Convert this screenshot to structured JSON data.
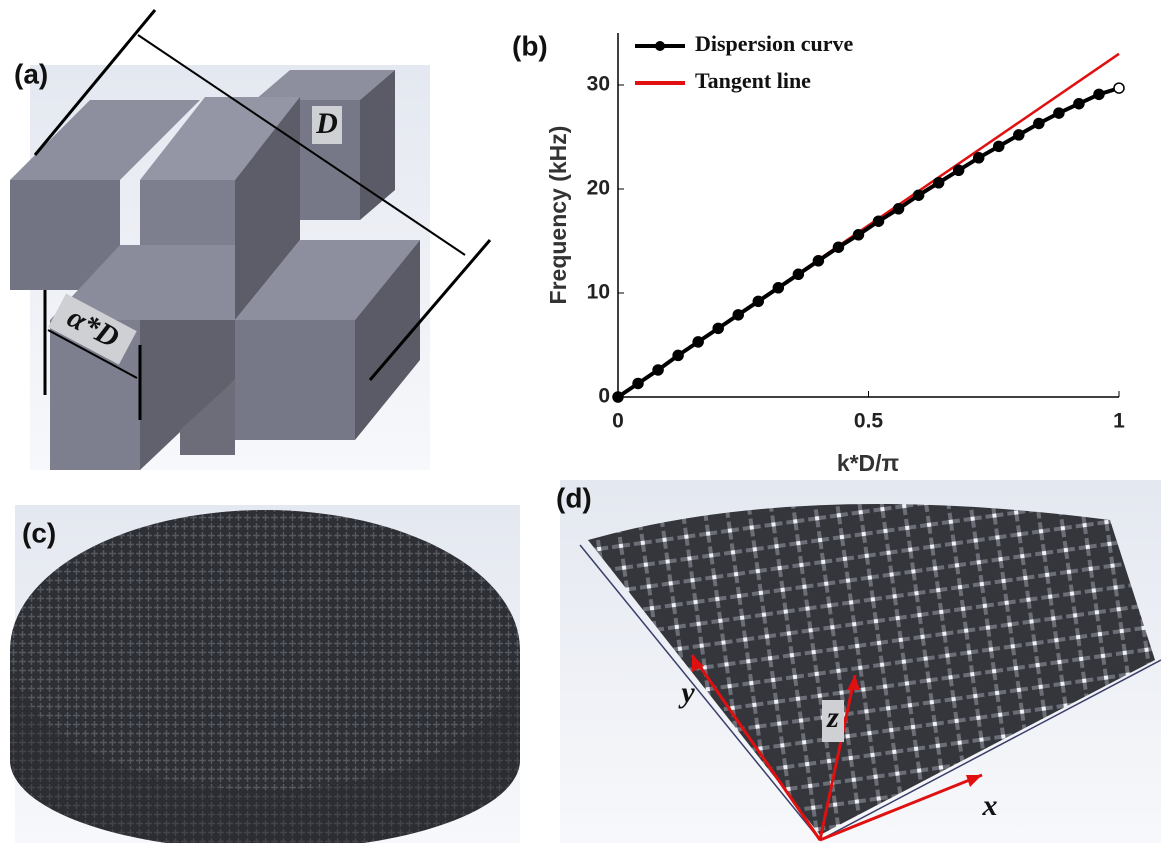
{
  "chart_data": {
    "type": "line",
    "panel_label": "(b)",
    "ylabel": "Frequency (kHz)",
    "xlabel": "k*D/π",
    "xlim": [
      0,
      1
    ],
    "ylim": [
      0,
      35
    ],
    "xticks": [
      0,
      0.5,
      1
    ],
    "yticks": [
      0,
      10,
      20,
      30
    ],
    "legend": "upper left",
    "series": [
      {
        "name": "Dispersion curve",
        "color": "#000000",
        "markers": true,
        "x": [
          0,
          0.04,
          0.08,
          0.12,
          0.16,
          0.2,
          0.24,
          0.28,
          0.32,
          0.36,
          0.4,
          0.44,
          0.48,
          0.52,
          0.56,
          0.6,
          0.64,
          0.68,
          0.72,
          0.76,
          0.8,
          0.84,
          0.88,
          0.92,
          0.96,
          1
        ],
        "values": [
          0,
          1.3,
          2.6,
          4.0,
          5.3,
          6.6,
          7.9,
          9.2,
          10.5,
          11.8,
          13.1,
          14.4,
          15.6,
          16.9,
          18.1,
          19.4,
          20.6,
          21.8,
          23.0,
          24.1,
          25.2,
          26.3,
          27.3,
          28.2,
          29.1,
          29.7
        ]
      },
      {
        "name": "Tangent line",
        "color": "#e01010",
        "markers": false,
        "x": [
          0,
          1
        ],
        "values": [
          0,
          33
        ]
      }
    ]
  },
  "panels": {
    "a": {
      "label": "(a)",
      "length_label": "D",
      "width_label": "α*D"
    },
    "c": {
      "label": "(c)"
    },
    "d": {
      "label": "(d)",
      "axis_x": "x",
      "axis_y": "y",
      "axis_z": "z"
    }
  }
}
